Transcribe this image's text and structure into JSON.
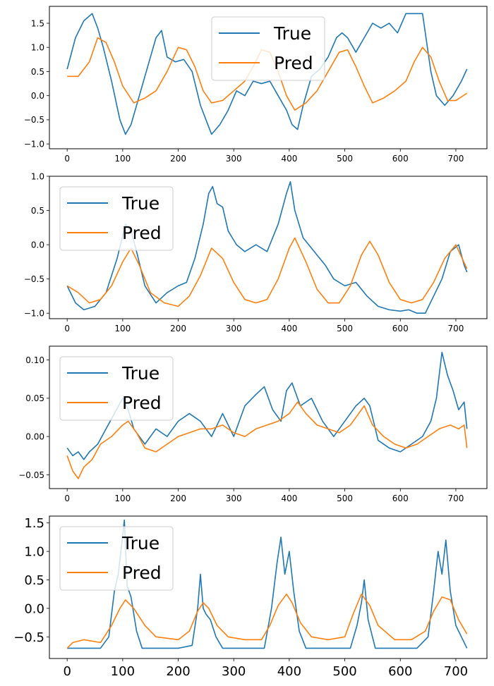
{
  "chart_data": [
    {
      "type": "line",
      "title": "",
      "xlabel": "",
      "ylabel": "",
      "grid": false,
      "legend_position": "top-center",
      "xlim": [
        -32,
        756
      ],
      "ylim": [
        -1.1,
        1.85
      ],
      "xticks": [
        0,
        100,
        200,
        300,
        400,
        500,
        600,
        700
      ],
      "xtick_labels": [
        "0",
        "100",
        "200",
        "300",
        "400",
        "500",
        "600",
        "700"
      ],
      "yticks": [
        -1.0,
        -0.5,
        0.0,
        0.5,
        1.0,
        1.5
      ],
      "ytick_labels": [
        "−1.0",
        "−0.5",
        "0.0",
        "0.5",
        "1.0",
        "1.5"
      ],
      "series": [
        {
          "name": "True",
          "color": "#1f77b4",
          "x": [
            0,
            15,
            30,
            45,
            55,
            65,
            80,
            95,
            105,
            115,
            130,
            145,
            160,
            170,
            180,
            195,
            210,
            225,
            240,
            250,
            260,
            275,
            290,
            305,
            320,
            335,
            350,
            365,
            380,
            395,
            405,
            415,
            425,
            440,
            455,
            470,
            485,
            495,
            505,
            520,
            535,
            550,
            565,
            580,
            595,
            610,
            625,
            640,
            655,
            665,
            680,
            695,
            710,
            720
          ],
          "values": [
            0.55,
            1.2,
            1.55,
            1.7,
            1.4,
            1.0,
            0.3,
            -0.5,
            -0.8,
            -0.6,
            0.0,
            0.6,
            1.2,
            1.35,
            0.8,
            0.7,
            0.75,
            0.5,
            -0.2,
            -0.5,
            -0.8,
            -0.6,
            -0.3,
            0.1,
            0.0,
            0.3,
            0.25,
            0.3,
            0.0,
            -0.3,
            -0.6,
            -0.7,
            -0.2,
            0.4,
            0.55,
            0.8,
            1.2,
            1.3,
            1.2,
            0.9,
            1.2,
            1.5,
            1.4,
            1.5,
            1.3,
            1.7,
            1.7,
            1.7,
            0.5,
            0.0,
            -0.2,
            0.0,
            0.3,
            0.55
          ]
        },
        {
          "name": "Pred",
          "color": "#ff7f0e",
          "x": [
            0,
            20,
            40,
            55,
            70,
            85,
            100,
            120,
            140,
            160,
            180,
            200,
            215,
            230,
            245,
            260,
            280,
            300,
            320,
            335,
            350,
            365,
            380,
            395,
            410,
            430,
            450,
            470,
            490,
            505,
            520,
            535,
            550,
            570,
            590,
            610,
            625,
            640,
            655,
            670,
            685,
            700,
            720
          ],
          "values": [
            0.4,
            0.4,
            0.7,
            1.2,
            1.1,
            0.7,
            0.2,
            -0.15,
            -0.05,
            0.1,
            0.5,
            1.0,
            0.95,
            0.6,
            0.1,
            -0.15,
            -0.1,
            0.1,
            0.3,
            0.6,
            0.95,
            0.9,
            0.5,
            0.0,
            -0.3,
            -0.15,
            0.1,
            0.5,
            0.9,
            0.95,
            0.6,
            0.2,
            -0.15,
            -0.05,
            0.1,
            0.3,
            0.7,
            1.0,
            0.8,
            0.3,
            -0.1,
            -0.1,
            0.05
          ]
        }
      ]
    },
    {
      "type": "line",
      "title": "",
      "xlabel": "",
      "ylabel": "",
      "grid": false,
      "legend_position": "upper-left",
      "xlim": [
        -32,
        756
      ],
      "ylim": [
        -1.08,
        1.0
      ],
      "xticks": [
        0,
        100,
        200,
        300,
        400,
        500,
        600,
        700
      ],
      "xtick_labels": [
        "0",
        "100",
        "200",
        "300",
        "400",
        "500",
        "600",
        "700"
      ],
      "yticks": [
        -1.0,
        -0.5,
        0.0,
        0.5,
        1.0
      ],
      "ytick_labels": [
        "−1.0",
        "−0.5",
        "0.0",
        "0.5",
        "1.0"
      ],
      "series": [
        {
          "name": "True",
          "color": "#1f77b4",
          "x": [
            0,
            15,
            30,
            50,
            70,
            90,
            105,
            115,
            125,
            140,
            160,
            180,
            200,
            215,
            230,
            245,
            255,
            262,
            270,
            280,
            290,
            305,
            320,
            340,
            360,
            380,
            395,
            402,
            410,
            425,
            445,
            465,
            480,
            500,
            520,
            540,
            560,
            580,
            600,
            615,
            630,
            645,
            660,
            675,
            690,
            705,
            715,
            720
          ],
          "values": [
            -0.6,
            -0.85,
            -0.95,
            -0.9,
            -0.7,
            -0.2,
            0.3,
            0.2,
            -0.1,
            -0.6,
            -0.85,
            -0.7,
            -0.6,
            -0.55,
            -0.2,
            0.3,
            0.75,
            0.85,
            0.6,
            0.55,
            0.2,
            0.0,
            -0.1,
            0.0,
            -0.1,
            0.3,
            0.75,
            0.92,
            0.5,
            0.1,
            -0.1,
            -0.3,
            -0.5,
            -0.6,
            -0.55,
            -0.75,
            -0.9,
            -0.95,
            -0.97,
            -0.95,
            -1.0,
            -1.0,
            -0.75,
            -0.5,
            -0.1,
            0.0,
            -0.3,
            -0.4
          ]
        },
        {
          "name": "Pred",
          "color": "#ff7f0e",
          "x": [
            0,
            20,
            40,
            60,
            80,
            100,
            115,
            130,
            150,
            175,
            200,
            220,
            240,
            260,
            280,
            300,
            320,
            340,
            360,
            380,
            400,
            410,
            430,
            450,
            470,
            490,
            510,
            530,
            545,
            560,
            580,
            600,
            620,
            640,
            660,
            680,
            700,
            720
          ],
          "values": [
            -0.6,
            -0.7,
            -0.85,
            -0.8,
            -0.6,
            -0.25,
            -0.05,
            -0.3,
            -0.7,
            -0.85,
            -0.9,
            -0.75,
            -0.45,
            -0.05,
            -0.2,
            -0.55,
            -0.8,
            -0.85,
            -0.8,
            -0.5,
            -0.05,
            0.1,
            -0.25,
            -0.65,
            -0.85,
            -0.85,
            -0.6,
            -0.15,
            0.05,
            -0.15,
            -0.55,
            -0.8,
            -0.85,
            -0.8,
            -0.55,
            -0.2,
            0.0,
            -0.35
          ]
        }
      ]
    },
    {
      "type": "line",
      "title": "",
      "xlabel": "",
      "ylabel": "",
      "grid": false,
      "legend_position": "upper-left",
      "xlim": [
        -32,
        756
      ],
      "ylim": [
        -0.068,
        0.118
      ],
      "xticks": [
        0,
        100,
        200,
        300,
        400,
        500,
        600,
        700
      ],
      "xtick_labels": [
        "0",
        "100",
        "200",
        "300",
        "400",
        "500",
        "600",
        "700"
      ],
      "yticks": [
        -0.05,
        0.0,
        0.05,
        0.1
      ],
      "ytick_labels": [
        "−0.05",
        "0.00",
        "0.05",
        "0.10"
      ],
      "series": [
        {
          "name": "True",
          "color": "#1f77b4",
          "x": [
            0,
            10,
            20,
            30,
            40,
            55,
            70,
            85,
            100,
            110,
            120,
            140,
            160,
            180,
            200,
            220,
            240,
            260,
            280,
            300,
            320,
            340,
            355,
            370,
            385,
            395,
            405,
            420,
            440,
            460,
            480,
            500,
            520,
            535,
            545,
            560,
            580,
            600,
            620,
            640,
            655,
            665,
            675,
            685,
            695,
            705,
            715,
            720
          ],
          "values": [
            -0.015,
            -0.025,
            -0.02,
            -0.03,
            -0.02,
            -0.01,
            0.01,
            0.03,
            0.05,
            0.035,
            0.01,
            -0.01,
            0.01,
            0.0,
            0.02,
            0.03,
            0.02,
            0.0,
            0.03,
            0.0,
            0.04,
            0.055,
            0.065,
            0.035,
            0.02,
            0.06,
            0.07,
            0.04,
            0.05,
            0.02,
            0.0,
            0.02,
            0.04,
            0.05,
            0.04,
            -0.005,
            -0.015,
            -0.02,
            -0.01,
            0.0,
            0.02,
            0.05,
            0.11,
            0.08,
            0.06,
            0.035,
            0.045,
            0.01
          ]
        },
        {
          "name": "Pred",
          "color": "#ff7f0e",
          "x": [
            0,
            10,
            20,
            30,
            45,
            60,
            80,
            100,
            110,
            125,
            140,
            160,
            180,
            200,
            220,
            240,
            260,
            280,
            300,
            320,
            340,
            360,
            380,
            400,
            415,
            430,
            450,
            470,
            490,
            510,
            525,
            535,
            550,
            570,
            590,
            610,
            630,
            650,
            670,
            690,
            705,
            715,
            720
          ],
          "values": [
            -0.025,
            -0.045,
            -0.055,
            -0.04,
            -0.03,
            -0.01,
            0.0,
            0.015,
            0.02,
            0.005,
            -0.015,
            -0.02,
            -0.01,
            0.0,
            0.005,
            0.01,
            0.01,
            0.015,
            0.005,
            0.0,
            0.01,
            0.015,
            0.02,
            0.03,
            0.045,
            0.03,
            0.015,
            0.01,
            0.005,
            0.015,
            0.03,
            0.04,
            0.015,
            0.0,
            -0.01,
            -0.015,
            -0.01,
            0.0,
            0.01,
            0.015,
            0.01,
            0.015,
            -0.015
          ]
        }
      ]
    },
    {
      "type": "line",
      "title": "",
      "xlabel": "",
      "ylabel": "",
      "grid": false,
      "legend_position": "upper-left",
      "xlim": [
        -32,
        756
      ],
      "ylim": [
        -0.88,
        1.62
      ],
      "xticks": [
        0,
        100,
        200,
        300,
        400,
        500,
        600,
        700
      ],
      "xtick_labels": [
        "0",
        "100",
        "200",
        "300",
        "400",
        "500",
        "600",
        "700"
      ],
      "yticks": [
        -0.5,
        0.0,
        0.5,
        1.0,
        1.5
      ],
      "ytick_labels": [
        "−0.5",
        "0.0",
        "0.5",
        "1.0",
        "1.5"
      ],
      "series": [
        {
          "name": "True",
          "color": "#1f77b4",
          "x": [
            0,
            20,
            40,
            60,
            75,
            85,
            92,
            98,
            103,
            108,
            115,
            125,
            135,
            160,
            200,
            225,
            235,
            240,
            245,
            250,
            258,
            268,
            280,
            320,
            355,
            368,
            378,
            385,
            392,
            400,
            408,
            418,
            430,
            470,
            510,
            522,
            530,
            535,
            542,
            555,
            590,
            630,
            650,
            660,
            668,
            675,
            682,
            690,
            700,
            720
          ],
          "values": [
            -0.7,
            -0.7,
            -0.7,
            -0.7,
            -0.5,
            0.3,
            0.6,
            1.1,
            1.55,
            0.4,
            0.2,
            -0.4,
            -0.7,
            -0.7,
            -0.7,
            -0.65,
            0.0,
            0.6,
            0.0,
            -0.1,
            -0.2,
            -0.5,
            -0.7,
            -0.7,
            -0.7,
            0.0,
            0.8,
            1.25,
            0.6,
            1.0,
            0.3,
            -0.4,
            -0.7,
            -0.7,
            -0.7,
            -0.3,
            0.1,
            0.5,
            -0.2,
            -0.7,
            -0.7,
            -0.7,
            -0.5,
            0.3,
            1.0,
            0.6,
            1.2,
            0.3,
            -0.3,
            -0.7
          ]
        },
        {
          "name": "Pred",
          "color": "#ff7f0e",
          "x": [
            0,
            10,
            30,
            60,
            80,
            95,
            105,
            120,
            140,
            160,
            200,
            220,
            235,
            245,
            255,
            270,
            290,
            320,
            350,
            365,
            380,
            395,
            405,
            420,
            440,
            470,
            500,
            515,
            530,
            545,
            560,
            590,
            620,
            645,
            660,
            675,
            690,
            705,
            720
          ],
          "values": [
            -0.7,
            -0.6,
            -0.55,
            -0.6,
            -0.3,
            0.0,
            0.15,
            0.0,
            -0.3,
            -0.5,
            -0.55,
            -0.4,
            -0.05,
            0.1,
            0.0,
            -0.3,
            -0.5,
            -0.55,
            -0.55,
            -0.3,
            0.05,
            0.25,
            0.1,
            -0.25,
            -0.5,
            -0.55,
            -0.5,
            -0.1,
            0.25,
            0.05,
            -0.3,
            -0.55,
            -0.55,
            -0.4,
            -0.05,
            0.2,
            0.15,
            -0.2,
            -0.45
          ]
        }
      ]
    }
  ]
}
